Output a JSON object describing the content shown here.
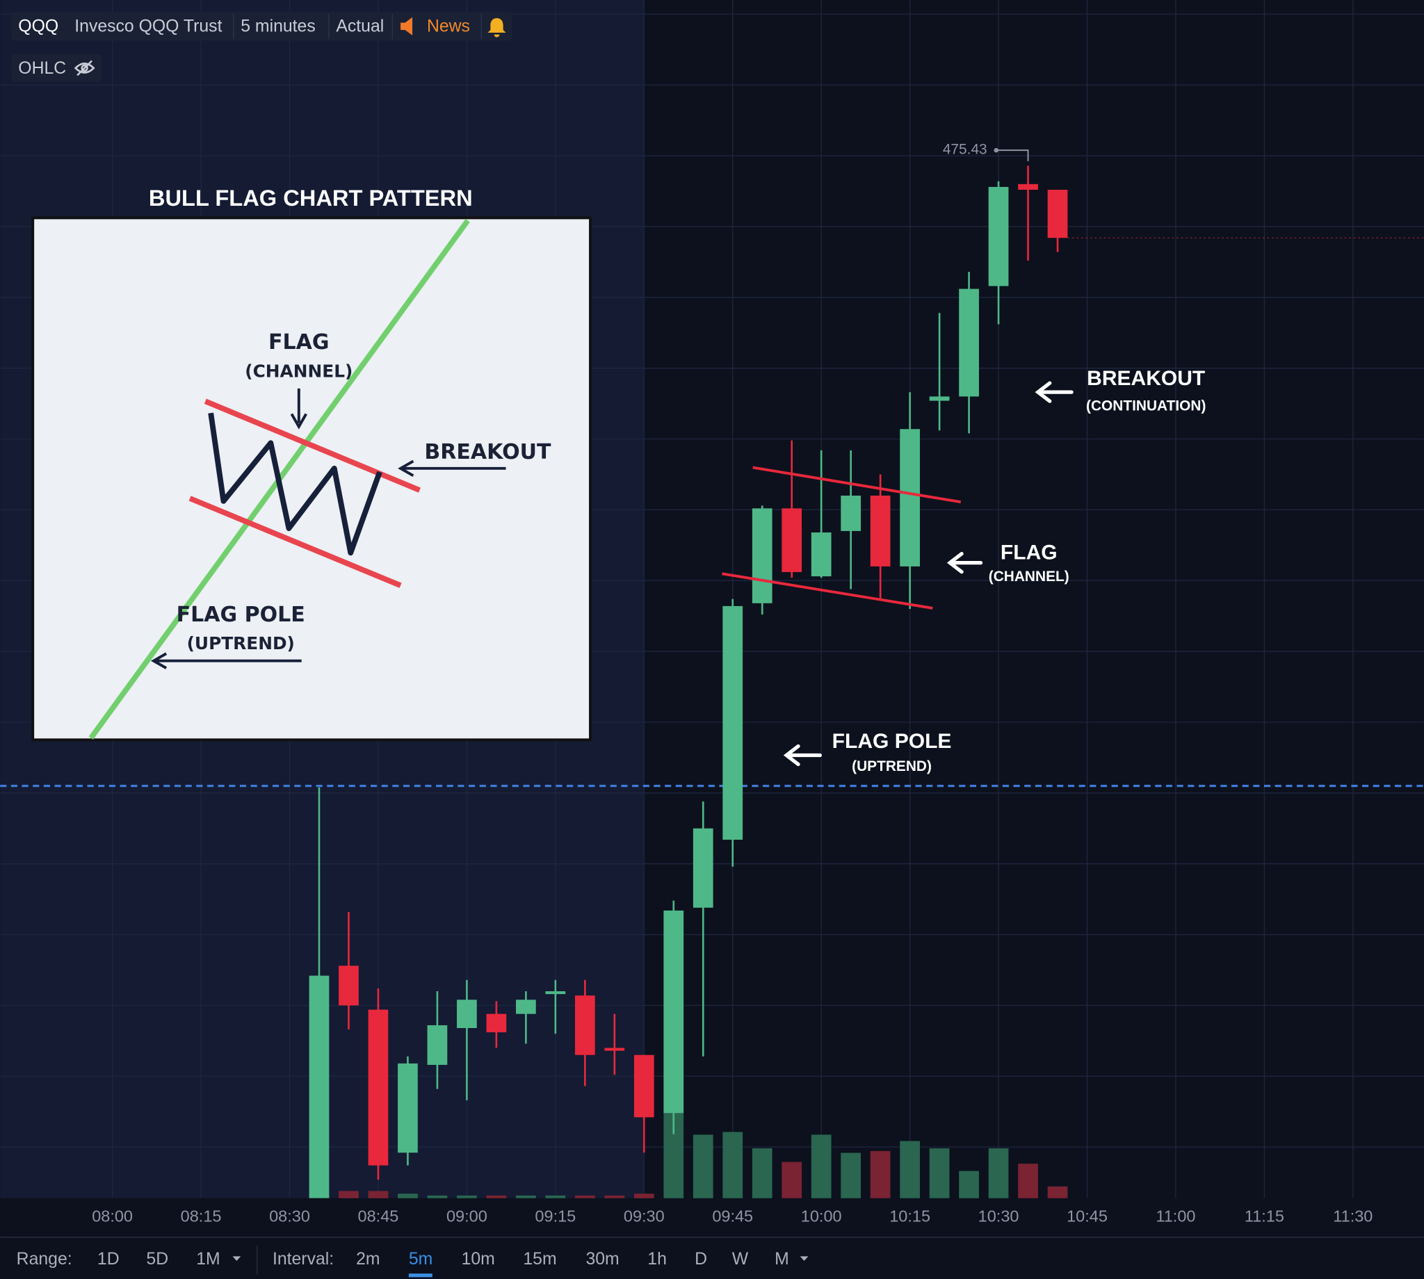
{
  "toolbar": {
    "symbol": "QQQ",
    "name": "Invesco QQQ Trust",
    "interval": "5 minutes",
    "mode": "Actual",
    "news": "News",
    "ohlc": "OHLC"
  },
  "chart_data": {
    "type": "candlestick",
    "x": [
      "08:35",
      "08:40",
      "08:45",
      "08:50",
      "08:55",
      "09:00",
      "09:05",
      "09:10",
      "09:15",
      "09:20",
      "09:25",
      "09:30",
      "09:35",
      "09:40",
      "09:45",
      "09:50",
      "09:55",
      "10:00",
      "10:05",
      "10:10",
      "10:15",
      "10:20",
      "10:25",
      "10:30",
      "10:35",
      "10:40"
    ],
    "open": [
      468.14,
      469.78,
      469.47,
      468.46,
      469.08,
      469.34,
      469.44,
      469.44,
      469.58,
      469.57,
      469.2,
      469.15,
      468.74,
      470.19,
      470.67,
      472.34,
      473.01,
      472.53,
      472.85,
      473.1,
      472.6,
      473.77,
      473.8,
      474.58,
      475.3,
      475.26
    ],
    "high": [
      471.04,
      470.16,
      469.62,
      469.14,
      469.6,
      469.68,
      469.53,
      469.6,
      469.68,
      469.68,
      469.44,
      469.15,
      470.24,
      470.94,
      472.37,
      473.03,
      473.49,
      473.42,
      473.42,
      473.25,
      473.83,
      474.39,
      474.68,
      475.32,
      475.43,
      475.26
    ],
    "low": [
      468.14,
      469.33,
      468.27,
      468.37,
      468.91,
      468.83,
      469.2,
      469.23,
      469.3,
      468.93,
      469.01,
      468.46,
      468.59,
      469.14,
      470.48,
      472.26,
      472.52,
      472.52,
      472.44,
      472.37,
      472.3,
      473.56,
      473.54,
      474.31,
      474.76,
      474.82
    ],
    "close": [
      469.71,
      469.5,
      468.37,
      469.09,
      469.36,
      469.54,
      469.31,
      469.54,
      469.6,
      469.15,
      469.18,
      468.71,
      470.17,
      470.75,
      472.32,
      473.01,
      472.56,
      472.84,
      473.1,
      472.6,
      473.57,
      473.8,
      474.56,
      475.28,
      475.26,
      474.92
    ],
    "volume": [
      3,
      8,
      8,
      5,
      3,
      3,
      3,
      3,
      3,
      3,
      3,
      5,
      95,
      70,
      73,
      55,
      40,
      70,
      50,
      52,
      63,
      55,
      30,
      55,
      38,
      13
    ],
    "up_color": "#4fb888",
    "down_color": "#e8283c",
    "volume_up_color": "#2a6650",
    "volume_down_color": "#7a2333",
    "xlim": [
      "07:41",
      "11:42"
    ],
    "xticks": [
      "08:00",
      "08:15",
      "08:30",
      "08:45",
      "09:00",
      "09:15",
      "09:30",
      "09:45",
      "10:00",
      "10:15",
      "10:30",
      "10:45",
      "11:00",
      "11:15",
      "11:30"
    ],
    "ylim": [
      468.1,
      476.6
    ],
    "ygrid": [
      468.5,
      469,
      469.5,
      470,
      470.5,
      471,
      471.5,
      472,
      472.5,
      473,
      473.5,
      474,
      474.5,
      475,
      475.5,
      476,
      476.5
    ],
    "volume_lim": [
      0,
      400
    ],
    "reference_line": 471.05,
    "premarket_end": "09:30"
  },
  "inset": {
    "title": "BULL FLAG CHART PATTERN",
    "flag": "FLAG",
    "flag_sub": "(CHANNEL)",
    "breakout": "BREAKOUT",
    "pole": "FLAG POLE",
    "pole_sub": "(UPTREND)"
  },
  "annotations": {
    "breakout": "BREAKOUT",
    "breakout_sub": "(CONTINUATION)",
    "flag": "FLAG",
    "flag_sub": "(CHANNEL)",
    "pole": "FLAG POLE",
    "pole_sub": "(UPTREND)"
  },
  "footer": {
    "range_label": "Range:",
    "ranges": [
      "1D",
      "5D",
      "1M"
    ],
    "interval_label": "Interval:",
    "intervals": [
      "2m",
      "5m",
      "10m",
      "15m",
      "30m",
      "1h",
      "D",
      "W",
      "M"
    ],
    "active_interval_index": 1
  }
}
